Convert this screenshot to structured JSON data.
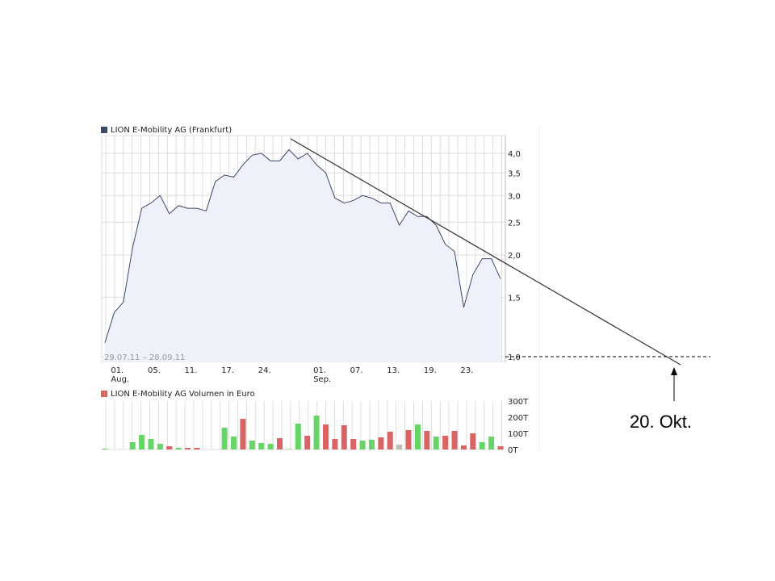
{
  "chart_data": [
    {
      "type": "area",
      "title": "LION E-Mobility AG (Frankfurt)",
      "date_range": "29.07.11 – 28.09.11",
      "y_scale": "log",
      "ylim": [
        1.0,
        4.3
      ],
      "y_ticks": [
        "4,0",
        "3,5",
        "3,0",
        "2,5",
        "2,0",
        "1,5",
        "1,0"
      ],
      "y_tick_values": [
        4.0,
        3.5,
        3.0,
        2.5,
        2.0,
        1.5,
        1.0
      ],
      "x_ticks": [
        {
          "index": 1,
          "label": "01.",
          "sub": "Aug."
        },
        {
          "index": 5,
          "label": "05."
        },
        {
          "index": 9,
          "label": "11."
        },
        {
          "index": 13,
          "label": "17."
        },
        {
          "index": 17,
          "label": "24."
        },
        {
          "index": 23,
          "label": "01.",
          "sub": "Sep."
        },
        {
          "index": 27,
          "label": "07."
        },
        {
          "index": 31,
          "label": "13."
        },
        {
          "index": 35,
          "label": "19."
        },
        {
          "index": 39,
          "label": "23."
        }
      ],
      "values": [
        1.1,
        1.35,
        1.45,
        2.1,
        2.75,
        2.85,
        3.0,
        2.65,
        2.8,
        2.75,
        2.75,
        2.7,
        3.3,
        3.45,
        3.4,
        3.7,
        3.95,
        4.0,
        3.8,
        3.8,
        4.1,
        3.85,
        4.0,
        3.7,
        3.5,
        2.95,
        2.85,
        2.9,
        3.0,
        2.95,
        2.85,
        2.85,
        2.45,
        2.7,
        2.6,
        2.6,
        2.45,
        2.15,
        2.05,
        1.4,
        1.75,
        1.95,
        1.95,
        1.7
      ],
      "line_color": "#3a4a6a",
      "fill_color": "#eef1fa",
      "grid": true
    },
    {
      "type": "bar",
      "title": "LION E-Mobility AG Volumen in Euro",
      "ylim": [
        0,
        300
      ],
      "y_ticks": [
        "300T",
        "200T",
        "100T",
        "0T"
      ],
      "y_tick_values": [
        300,
        200,
        100,
        0
      ],
      "values": [
        5,
        0,
        0,
        45,
        90,
        65,
        35,
        20,
        10,
        10,
        10,
        0,
        0,
        135,
        80,
        190,
        55,
        40,
        35,
        70,
        3,
        160,
        85,
        210,
        155,
        65,
        150,
        65,
        55,
        60,
        75,
        110,
        30,
        120,
        155,
        115,
        80,
        85,
        115,
        25,
        100,
        45,
        80,
        20
      ],
      "directions": [
        "up",
        "",
        "",
        "up",
        "up",
        "up",
        "up",
        "down",
        "up",
        "down",
        "down",
        "",
        "",
        "up",
        "up",
        "down",
        "up",
        "up",
        "up",
        "down",
        "up",
        "up",
        "down",
        "up",
        "down",
        "down",
        "down",
        "down",
        "up",
        "up",
        "down",
        "down",
        "flat",
        "down",
        "up",
        "down",
        "up",
        "down",
        "down",
        "down",
        "down",
        "up",
        "up",
        "down"
      ],
      "colors": {
        "up": "#66d466",
        "down": "#d96464",
        "flat": "#bbbbbb"
      }
    }
  ],
  "annotation": {
    "label": "20. Okt.",
    "trendline": "down",
    "support_level": "1,0"
  }
}
